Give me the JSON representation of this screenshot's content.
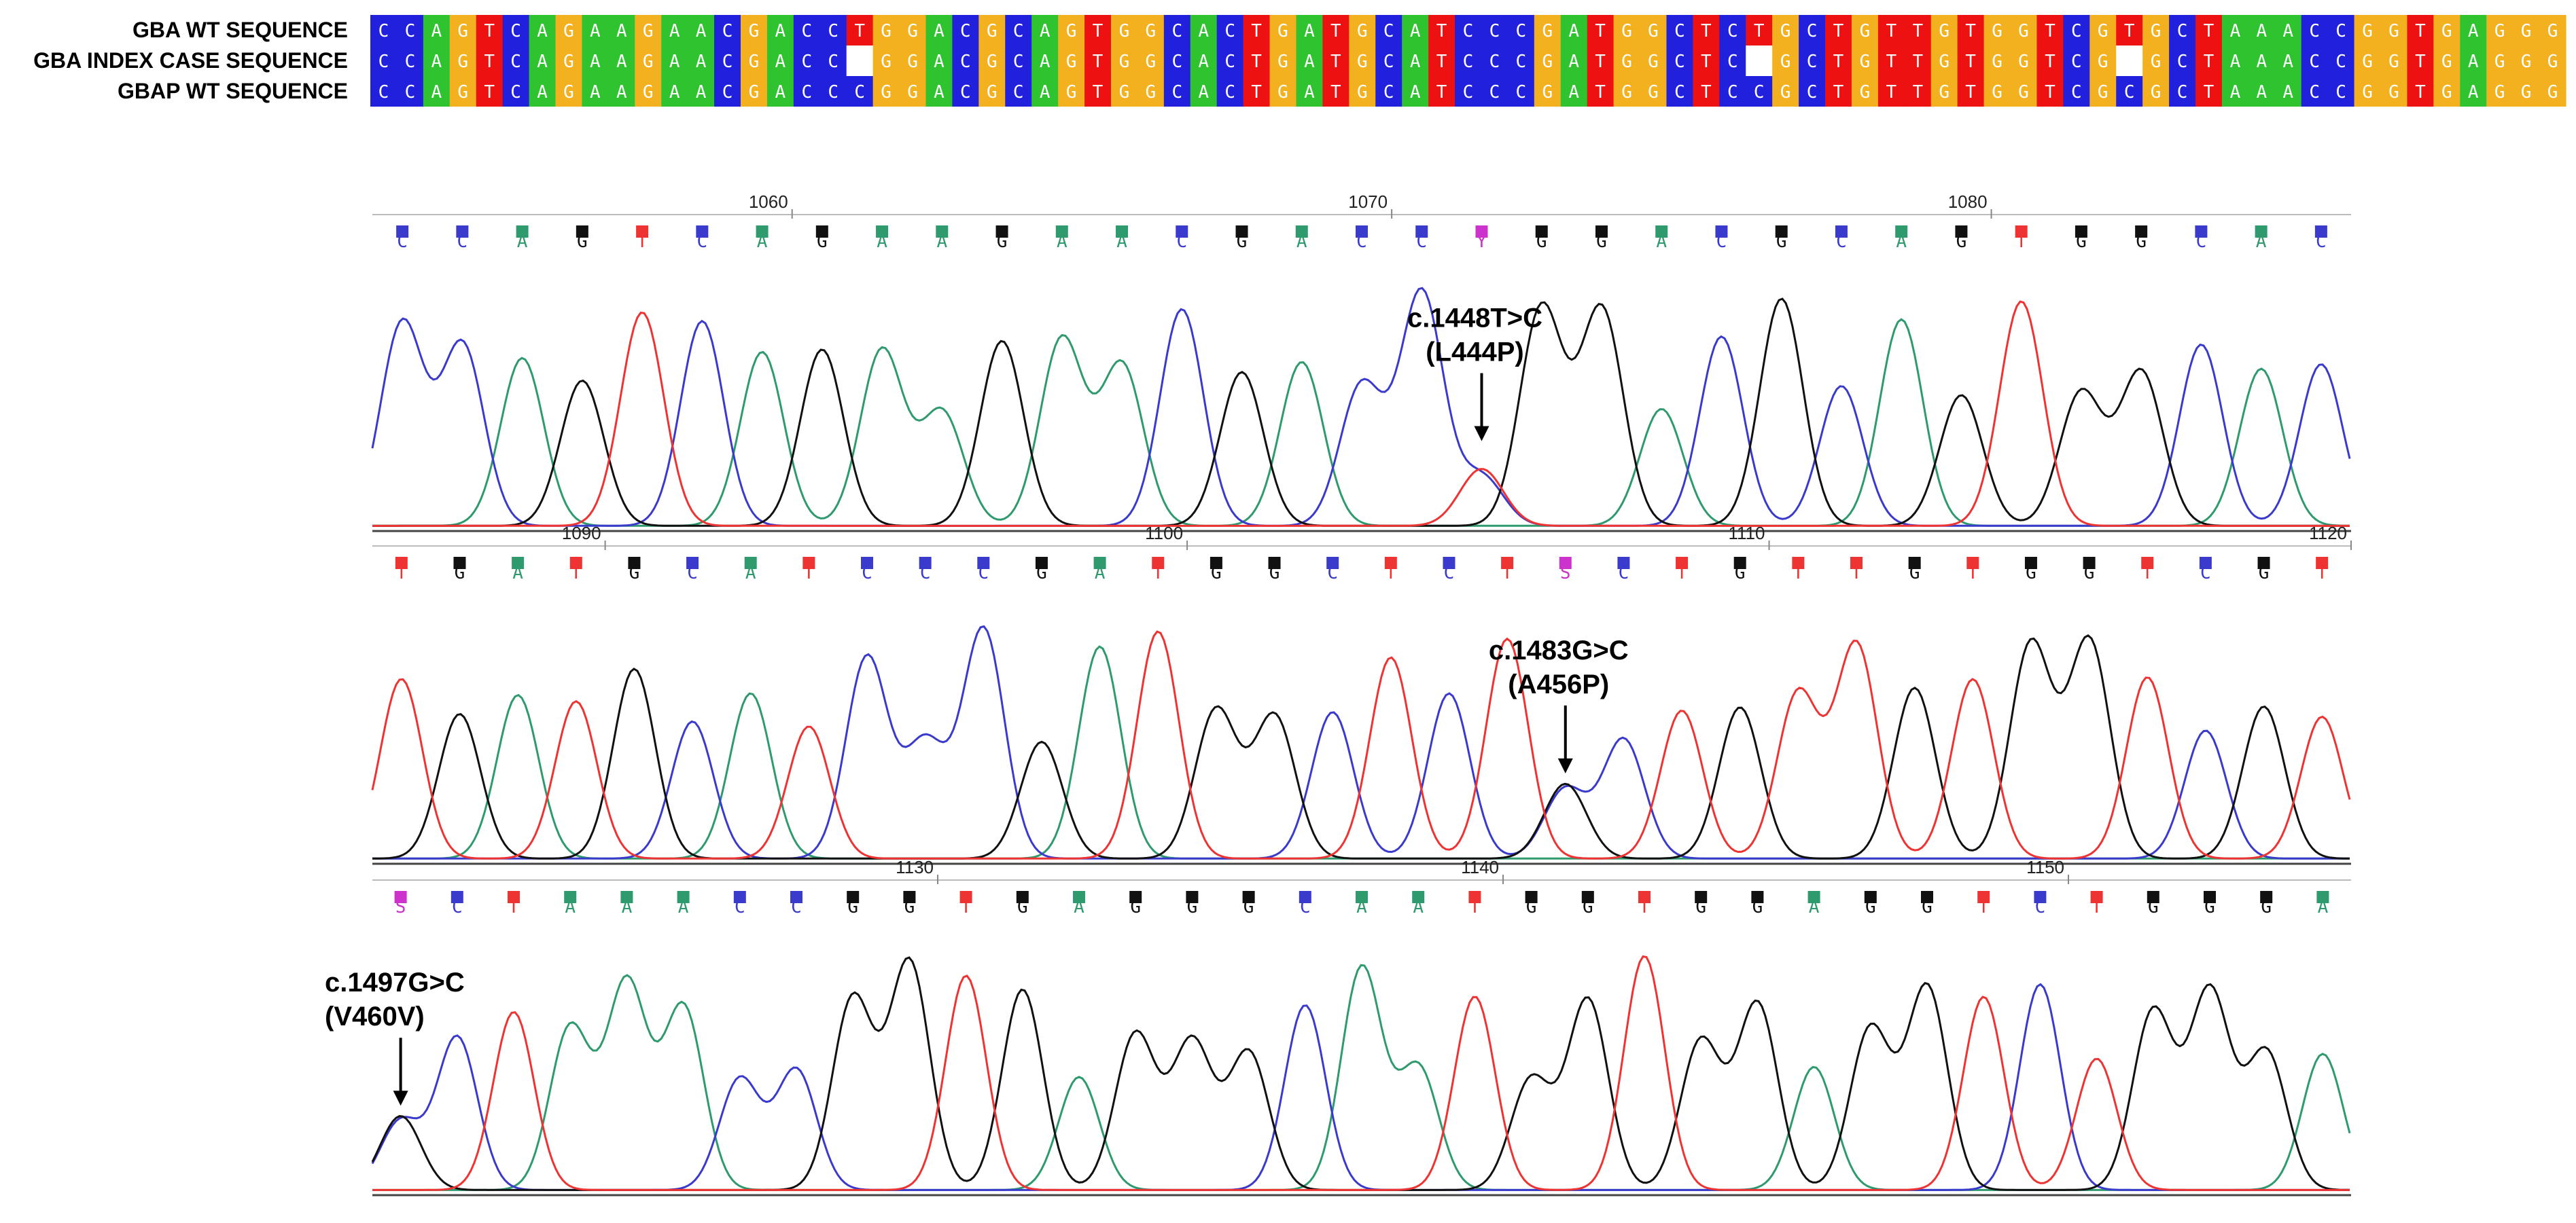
{
  "alignment": {
    "rows": [
      {
        "label": "GBA WT SEQUENCE",
        "sequence": "CCAGTCAGAAGAACGACCTGGACGCAGTGGCACTGATGCATCCCGATGGCTCTGCTGTTGTGGTCGTGCTAAACCGGTGAGGG"
      },
      {
        "label": "GBA INDEX CASE SEQUENCE",
        "sequence": "CCAGTCAGAAGAACGACC-GGACGCAGTGGCACTGATGCATCCCGATGGCTC-GCTGTTGTGGTCG-GCTAAACCGGTGAGGG"
      },
      {
        "label": "GBAP WT SEQUENCE",
        "sequence": "CCAGTCAGAAGAACGACCCGGACGCAGTGGCACTGATGCATCCCGATGGCTCCGCTGTTGTGGTCGCGCTAAACCGGTGAGGG"
      }
    ],
    "colors": {
      "A": "#2fc42f",
      "C": "#2020dd",
      "G": "#f4b11f",
      "T": "#ee1111",
      "-": "#ffffff"
    }
  },
  "chromatogram": {
    "trace_colors": {
      "A": "#2e9a6e",
      "C": "#3a3acc",
      "G": "#111111",
      "T": "#ee3333",
      "N": "#cc33cc"
    },
    "panels": [
      {
        "calls": "CCAGTCAGAAGAACGACCYGGACGCAGTGGCAC",
        "ticks": [
          {
            "label": "1060",
            "after_index": 6
          },
          {
            "label": "1070",
            "after_index": 16
          },
          {
            "label": "1080",
            "after_index": 26
          }
        ],
        "annotation": {
          "line1": "c.1448T>C",
          "line2": "(L444P)",
          "at_index": 18
        }
      },
      {
        "calls": "TGATGCATCCCGATGGCTCTSCTGTTGTGGTCGT",
        "ticks": [
          {
            "label": "1090",
            "after_index": 3
          },
          {
            "label": "1100",
            "after_index": 13
          },
          {
            "label": "1110",
            "after_index": 23
          },
          {
            "label": "1120",
            "after_index": 33
          }
        ],
        "annotation": {
          "line1": "c.1483G>C",
          "line2": "(A456P)",
          "at_index": 20
        }
      },
      {
        "calls": "SCTAAACCGGTGAGGGCAATGGTGGAGGTCTGGGA",
        "ticks": [
          {
            "label": "1130",
            "after_index": 9
          },
          {
            "label": "1140",
            "after_index": 19
          },
          {
            "label": "1150",
            "after_index": 29
          }
        ],
        "annotation": {
          "line1": "c.1497G>C",
          "line2": "(V460V)",
          "at_index": 0
        }
      }
    ]
  }
}
